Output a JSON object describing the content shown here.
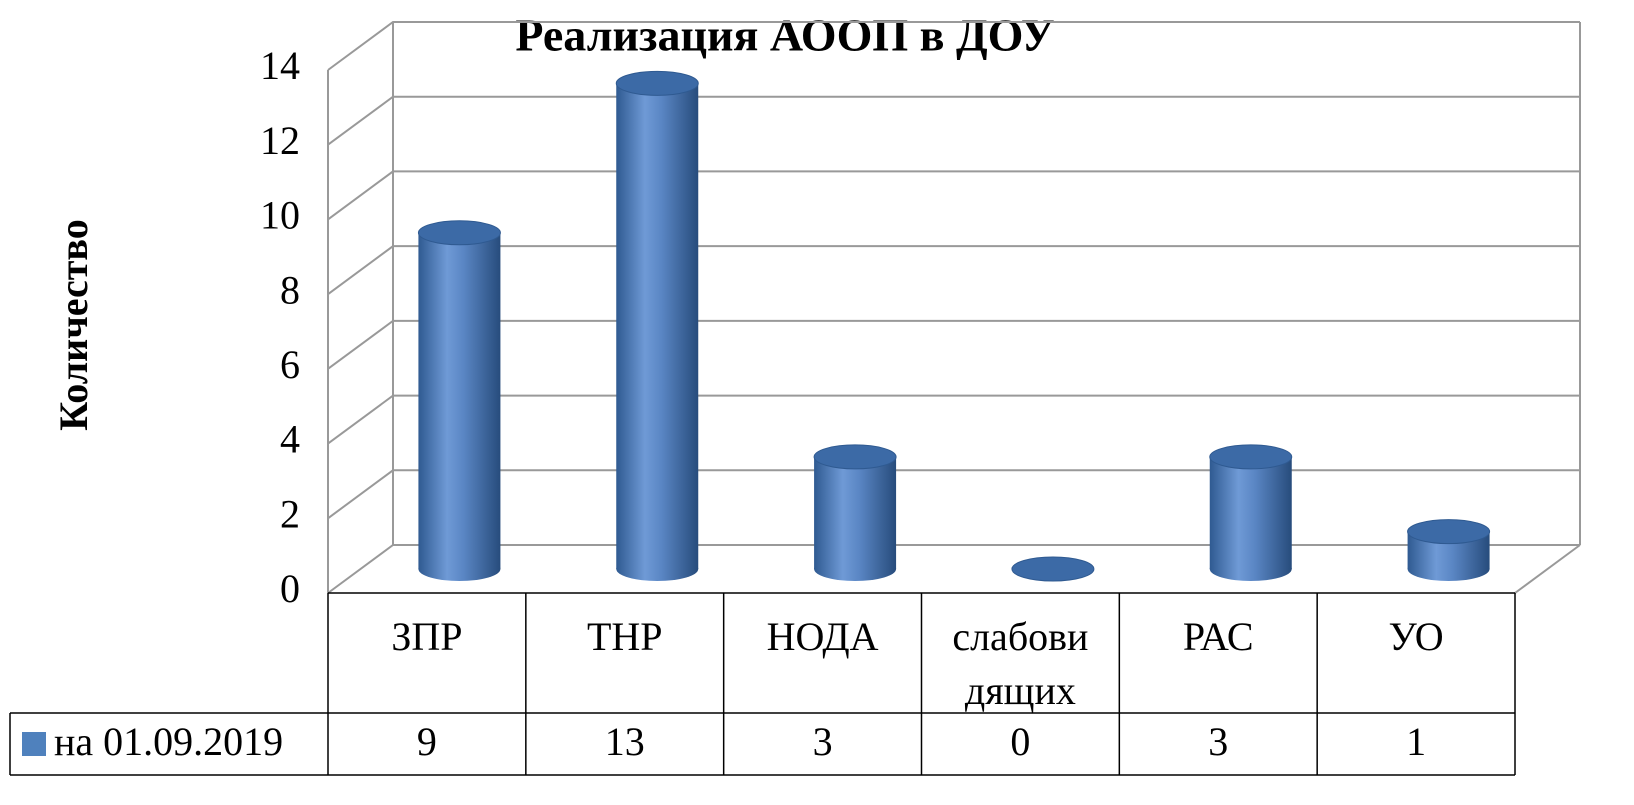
{
  "chart_data": {
    "type": "bar",
    "title": "Реализация АООП в ДОУ",
    "y_label": "Количество",
    "categories": [
      "ЗПР",
      "ТНР",
      "НОДА",
      "слабови дящих",
      "РАС",
      "УО"
    ],
    "series": [
      {
        "name": "на 01.09.2019",
        "color": "#4f81bd",
        "values": [
          9,
          13,
          3,
          0,
          3,
          1
        ]
      }
    ],
    "ylim": [
      0,
      14
    ],
    "yticks": [
      0,
      2,
      4,
      6,
      8,
      10,
      12,
      14
    ],
    "grid": true,
    "legend": "table"
  }
}
